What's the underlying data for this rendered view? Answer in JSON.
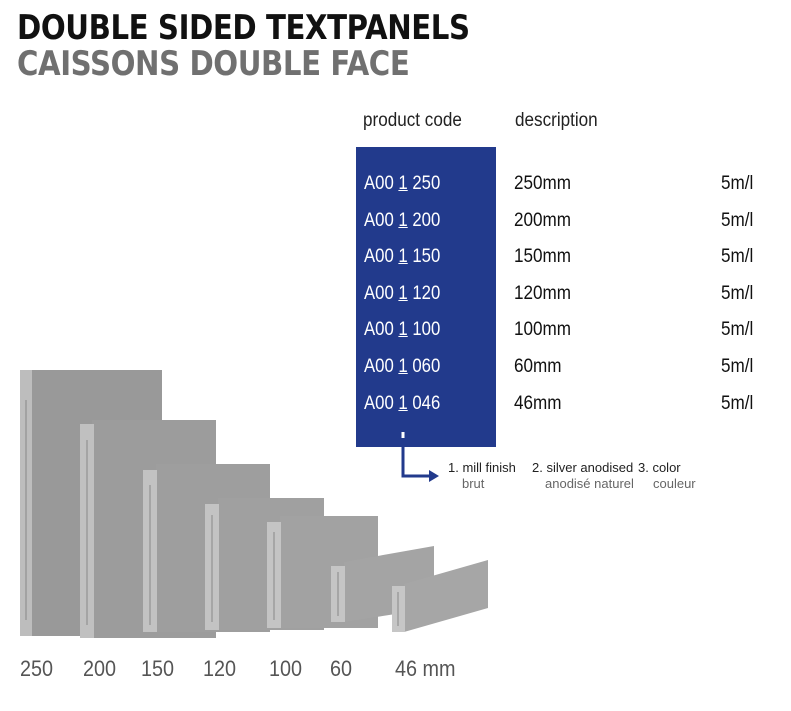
{
  "title": "DOUBLE SIDED TEXTPANELS",
  "subtitle": "CAISSONS DOUBLE FACE",
  "headers": {
    "code": "product code",
    "description": "description"
  },
  "rows": [
    {
      "prefix": "A00 ",
      "digit": "1",
      "suffix": " 250",
      "desc": "250mm",
      "length": "5m/l"
    },
    {
      "prefix": "A00 ",
      "digit": "1",
      "suffix": " 200",
      "desc": "200mm",
      "length": "5m/l"
    },
    {
      "prefix": "A00 ",
      "digit": "1",
      "suffix": " 150",
      "desc": "150mm",
      "length": "5m/l"
    },
    {
      "prefix": "A00 ",
      "digit": "1",
      "suffix": " 120",
      "desc": "120mm",
      "length": "5m/l"
    },
    {
      "prefix": "A00 ",
      "digit": "1",
      "suffix": " 100",
      "desc": "100mm",
      "length": "5m/l"
    },
    {
      "prefix": "A00 ",
      "digit": "1",
      "suffix": " 060",
      "desc": "60mm",
      "length": "5m/l"
    },
    {
      "prefix": "A00 ",
      "digit": "1",
      "suffix": " 046",
      "desc": "46mm",
      "length": "5m/l"
    }
  ],
  "options": [
    {
      "en": "1. mill finish",
      "fr": "brut"
    },
    {
      "en": "2. silver anodised",
      "fr": "anodisé naturel"
    },
    {
      "en": "3. color",
      "fr": "couleur"
    }
  ],
  "sizes": [
    "250",
    "200",
    "150",
    "120",
    "100",
    "60",
    "46 mm"
  ],
  "colors": {
    "box": "#223a8c",
    "arrow": "#223a8c",
    "panel": "#9a9a9a",
    "panel_edge": "#c8c8c8"
  }
}
